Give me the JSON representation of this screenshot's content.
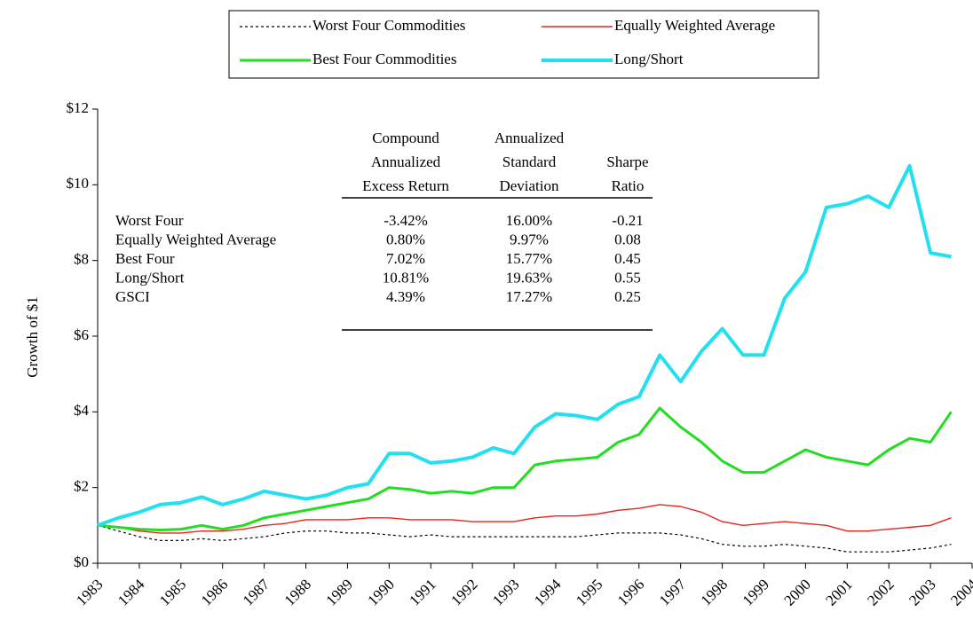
{
  "chart_data": {
    "type": "line",
    "y_label": "Growth of $1",
    "x": [
      1983,
      1983.5,
      1984,
      1984.5,
      1985,
      1985.5,
      1986,
      1986.5,
      1987,
      1987.5,
      1988,
      1988.5,
      1989,
      1989.5,
      1990,
      1990.5,
      1991,
      1991.5,
      1992,
      1992.5,
      1993,
      1993.5,
      1994,
      1994.5,
      1995,
      1995.5,
      1996,
      1996.5,
      1997,
      1997.5,
      1998,
      1998.5,
      1999,
      1999.5,
      2000,
      2000.5,
      2001,
      2001.5,
      2002,
      2002.5,
      2003,
      2003.5
    ],
    "series": [
      {
        "name": "Worst Four Commodities",
        "color": "#000000",
        "linestyle": "dotted",
        "values": [
          1.0,
          0.85,
          0.7,
          0.6,
          0.6,
          0.65,
          0.6,
          0.65,
          0.7,
          0.8,
          0.85,
          0.85,
          0.8,
          0.8,
          0.75,
          0.7,
          0.75,
          0.7,
          0.7,
          0.7,
          0.7,
          0.7,
          0.7,
          0.7,
          0.75,
          0.8,
          0.8,
          0.8,
          0.75,
          0.65,
          0.5,
          0.45,
          0.45,
          0.5,
          0.45,
          0.4,
          0.3,
          0.3,
          0.3,
          0.35,
          0.4,
          0.5
        ]
      },
      {
        "name": "Equally Weighted Average",
        "color": "#e8231c",
        "linestyle": "solid",
        "values": [
          1.0,
          0.95,
          0.85,
          0.8,
          0.8,
          0.85,
          0.85,
          0.9,
          1.0,
          1.05,
          1.15,
          1.15,
          1.15,
          1.2,
          1.2,
          1.15,
          1.15,
          1.15,
          1.1,
          1.1,
          1.1,
          1.2,
          1.25,
          1.25,
          1.3,
          1.4,
          1.45,
          1.55,
          1.5,
          1.35,
          1.1,
          1.0,
          1.05,
          1.1,
          1.05,
          1.0,
          0.85,
          0.85,
          0.9,
          0.95,
          1.0,
          1.2
        ]
      },
      {
        "name": "Best Four Commodities",
        "color": "#22dd22",
        "linestyle": "solid",
        "values": [
          1.0,
          0.95,
          0.9,
          0.88,
          0.9,
          1.0,
          0.9,
          1.0,
          1.2,
          1.3,
          1.4,
          1.5,
          1.6,
          1.7,
          2.0,
          1.95,
          1.85,
          1.9,
          1.85,
          2.0,
          2.0,
          2.6,
          2.7,
          2.75,
          2.8,
          3.2,
          3.4,
          4.1,
          3.6,
          3.2,
          2.7,
          2.4,
          2.4,
          2.7,
          3.0,
          2.8,
          2.7,
          2.6,
          3.0,
          3.3,
          3.2,
          4.0
        ]
      },
      {
        "name": "Long/Short",
        "color": "#22e0f0",
        "linestyle": "solid",
        "values": [
          1.0,
          1.2,
          1.35,
          1.55,
          1.6,
          1.75,
          1.55,
          1.7,
          1.9,
          1.8,
          1.7,
          1.8,
          2.0,
          2.1,
          2.9,
          2.9,
          2.65,
          2.7,
          2.8,
          3.05,
          2.9,
          3.6,
          3.95,
          3.9,
          3.8,
          4.2,
          4.4,
          5.5,
          4.8,
          5.6,
          6.2,
          5.5,
          5.5,
          7.0,
          7.7,
          9.4,
          9.5,
          9.7,
          9.4,
          10.5,
          8.2,
          8.1
        ]
      }
    ],
    "xlim": [
      1983,
      2004
    ],
    "xticks": [
      1983,
      1984,
      1985,
      1986,
      1987,
      1988,
      1989,
      1990,
      1991,
      1992,
      1993,
      1994,
      1995,
      1996,
      1997,
      1998,
      1999,
      2000,
      2001,
      2002,
      2003,
      2004
    ],
    "ylim": [
      0,
      12
    ],
    "yticks": [
      {
        "value": 0,
        "label": "$0"
      },
      {
        "value": 2,
        "label": "$2"
      },
      {
        "value": 4,
        "label": "$4"
      },
      {
        "value": 6,
        "label": "$6"
      },
      {
        "value": 8,
        "label": "$8"
      },
      {
        "value": 10,
        "label": "$10"
      },
      {
        "value": 12,
        "label": "$12"
      }
    ],
    "legend": "top",
    "table": {
      "headers": [
        [
          "Compound",
          "Annualized",
          "Excess Return"
        ],
        [
          "Annualized",
          "Standard",
          "Deviation"
        ],
        [
          "Sharpe",
          "Ratio"
        ]
      ],
      "rows": [
        [
          "Worst Four",
          "-3.42%",
          "16.00%",
          "-0.21"
        ],
        [
          "Equally Weighted Average",
          "0.80%",
          "9.97%",
          "0.08"
        ],
        [
          "Best Four",
          "7.02%",
          "15.77%",
          "0.45"
        ],
        [
          "Long/Short",
          "10.81%",
          "19.63%",
          "0.55"
        ],
        [
          "GSCI",
          "4.39%",
          "17.27%",
          "0.25"
        ]
      ]
    }
  }
}
